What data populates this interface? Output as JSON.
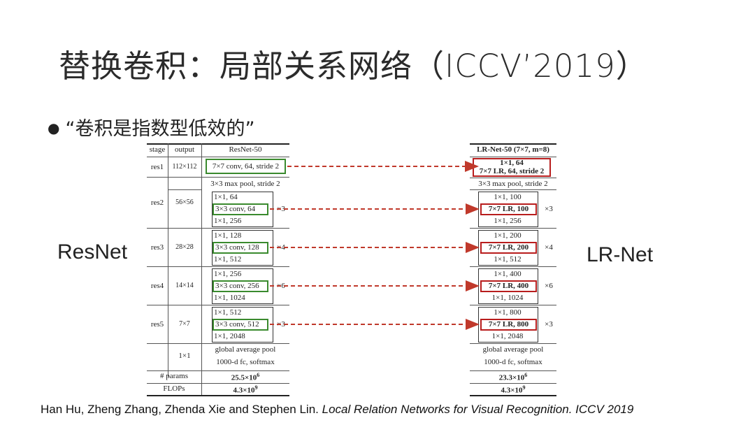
{
  "slide": {
    "title": "替换卷积：局部关系网络（ICCV’2019）",
    "bullet": "“卷积是指数型低效的”",
    "left_label": "ResNet",
    "right_label": "LR-Net",
    "citation_authors": "Han Hu, Zheng Zhang, Zhenda Xie and Stephen Lin. ",
    "citation_title": "Local Relation Networks for Visual Recognition. ICCV 2019"
  },
  "resnet_table": {
    "headers": [
      "stage",
      "output",
      "ResNet-50"
    ],
    "res1": {
      "stage": "res1",
      "output": "112×112",
      "conv": "7×7 conv, 64, stride 2"
    },
    "pool": "3×3 max pool, stride 2",
    "blocks": [
      {
        "stage": "res2",
        "output": "56×56",
        "l1": "1×1, 64",
        "l2": "3×3 conv, 64",
        "l3": "1×1, 256",
        "mult": "×3"
      },
      {
        "stage": "res3",
        "output": "28×28",
        "l1": "1×1, 128",
        "l2": "3×3 conv, 128",
        "l3": "1×1, 512",
        "mult": "×4"
      },
      {
        "stage": "res4",
        "output": "14×14",
        "l1": "1×1, 256",
        "l2": "3×3 conv, 256",
        "l3": "1×1, 1024",
        "mult": "×6"
      },
      {
        "stage": "res5",
        "output": "7×7",
        "l1": "1×1, 512",
        "l2": "3×3 conv, 512",
        "l3": "1×1, 2048",
        "mult": "×3"
      }
    ],
    "final": {
      "output": "1×1",
      "pool": "global average pool",
      "fc": "1000-d fc, softmax"
    },
    "params": {
      "label": "# params",
      "value": "25.5×10",
      "exp": "6"
    },
    "flops": {
      "label": "FLOPs",
      "value": "4.3×10",
      "exp": "9"
    }
  },
  "lrnet_table": {
    "header": "LR-Net-50 (7×7, m=8)",
    "res1_a": "1×1, 64",
    "res1_b": "7×7 LR, 64, stride 2",
    "pool": "3×3 max pool, stride 2",
    "blocks": [
      {
        "l1": "1×1, 100",
        "l2": "7×7 LR, 100",
        "l3": "1×1, 256",
        "mult": "×3"
      },
      {
        "l1": "1×1, 200",
        "l2": "7×7 LR, 200",
        "l3": "1×1, 512",
        "mult": "×4"
      },
      {
        "l1": "1×1, 400",
        "l2": "7×7 LR, 400",
        "l3": "1×1, 1024",
        "mult": "×6"
      },
      {
        "l1": "1×1, 800",
        "l2": "7×7 LR, 800",
        "l3": "1×1, 2048",
        "mult": "×3"
      }
    ],
    "final_pool": "global average pool",
    "final_fc": "1000-d fc, softmax",
    "params_value": "23.3×10",
    "params_exp": "6",
    "flops_value": "4.3×10",
    "flops_exp": "9"
  },
  "colors": {
    "green_box": "#3a8a2e",
    "red_box": "#b81d1d",
    "arrow": "#c0392b"
  }
}
